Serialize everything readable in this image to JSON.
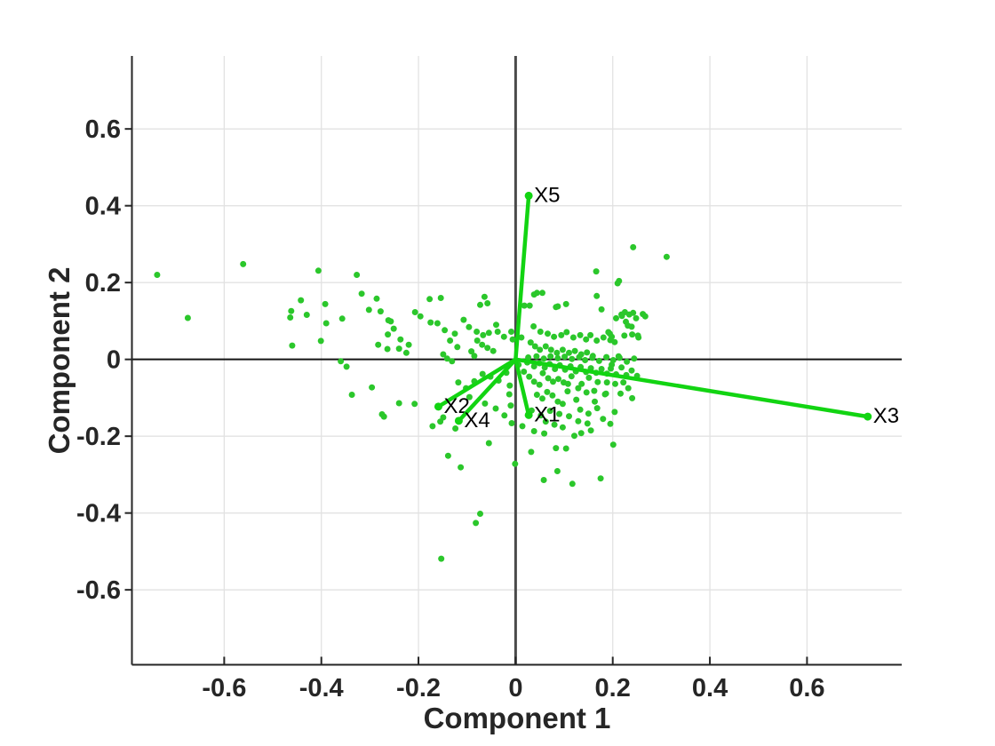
{
  "figure": {
    "background": "#ffffff"
  },
  "chart_data": {
    "type": "scatter",
    "subtype": "pca-biplot",
    "title": "",
    "xlabel": "Component 1",
    "ylabel": "Component 2",
    "xlim": [
      -0.79,
      0.795
    ],
    "ylim": [
      -0.795,
      0.79
    ],
    "xticks": [
      -0.6,
      -0.4,
      -0.2,
      0,
      0.2,
      0.4,
      0.6
    ],
    "xtick_labels": [
      "-0.6",
      "-0.4",
      "-0.2",
      "0",
      "0.2",
      "0.4",
      "0.6"
    ],
    "yticks": [
      -0.6,
      -0.4,
      -0.2,
      0,
      0.2,
      0.4,
      0.6
    ],
    "ytick_labels": [
      "-0.6",
      "-0.4",
      "-0.2",
      "0",
      "0.2",
      "0.4",
      "0.6"
    ],
    "grid": true,
    "zero_lines": true,
    "legend": "none",
    "colors": {
      "marker": "#2bc72b",
      "vector": "#12d412",
      "axis": "#262626",
      "grid": "#e2e2e2",
      "zero_horizontal": "#151515",
      "zero_vertical": "#4a4a4a",
      "vector_label": "#000000"
    },
    "vectors": [
      {
        "name": "X1",
        "x": 0.027,
        "y": -0.145
      },
      {
        "name": "X2",
        "x": -0.159,
        "y": -0.123
      },
      {
        "name": "X3",
        "x": 0.725,
        "y": -0.149
      },
      {
        "name": "X4",
        "x": -0.117,
        "y": -0.16
      },
      {
        "name": "X5",
        "x": 0.027,
        "y": 0.426
      }
    ],
    "points": [
      [
        -0.738,
        0.22
      ],
      [
        -0.675,
        0.108
      ],
      [
        -0.561,
        0.248
      ],
      [
        -0.464,
        0.109
      ],
      [
        -0.462,
        0.126
      ],
      [
        -0.46,
        0.036
      ],
      [
        -0.442,
        0.154
      ],
      [
        -0.43,
        0.116
      ],
      [
        -0.406,
        0.231
      ],
      [
        -0.401,
        0.048
      ],
      [
        -0.392,
        0.144
      ],
      [
        -0.39,
        0.094
      ],
      [
        -0.36,
        -0.005
      ],
      [
        -0.357,
        0.106
      ],
      [
        -0.348,
        -0.019
      ],
      [
        -0.337,
        -0.092
      ],
      [
        -0.327,
        0.22
      ],
      [
        -0.317,
        0.171
      ],
      [
        -0.302,
        0.129
      ],
      [
        -0.296,
        -0.073
      ],
      [
        -0.286,
        0.158
      ],
      [
        -0.283,
        0.038
      ],
      [
        -0.278,
        0.125
      ],
      [
        -0.275,
        -0.143
      ],
      [
        -0.264,
        0.027
      ],
      [
        -0.262,
        0.102
      ],
      [
        -0.257,
        0.099
      ],
      [
        -0.251,
        0.08
      ],
      [
        -0.263,
        0.065
      ],
      [
        -0.237,
        0.052
      ],
      [
        -0.24,
        0.028
      ],
      [
        -0.22,
        0.038
      ],
      [
        -0.225,
        0.017
      ],
      [
        -0.207,
        0.123
      ],
      [
        -0.196,
        0.112
      ],
      [
        -0.177,
        0.157
      ],
      [
        -0.154,
        0.16
      ],
      [
        -0.175,
        0.096
      ],
      [
        -0.161,
        0.094
      ],
      [
        -0.146,
        0.076
      ],
      [
        -0.125,
        0.067
      ],
      [
        -0.135,
        0.049
      ],
      [
        -0.12,
        0.032
      ],
      [
        -0.107,
        0.103
      ],
      [
        -0.096,
        0.084
      ],
      [
        -0.08,
        0.072
      ],
      [
        -0.067,
        0.063
      ],
      [
        -0.055,
        0.069
      ],
      [
        -0.064,
        0.163
      ],
      [
        -0.073,
        0.142
      ],
      [
        -0.058,
        0.146
      ],
      [
        -0.04,
        0.09
      ],
      [
        -0.037,
        0.072
      ],
      [
        -0.024,
        0.059
      ],
      [
        -0.009,
        0.072
      ],
      [
        -0.006,
        0.052
      ],
      [
        0.012,
        0.057
      ],
      [
        -0.079,
        0.049
      ],
      [
        -0.069,
        0.038
      ],
      [
        -0.058,
        0.03
      ],
      [
        -0.046,
        0.022
      ],
      [
        -0.091,
        0.021
      ],
      [
        -0.085,
        0.009
      ],
      [
        -0.149,
        0.013
      ],
      [
        -0.141,
        0.002
      ],
      [
        -0.131,
        -0.005
      ],
      [
        0.044,
        0.173
      ],
      [
        0.055,
        0.173
      ],
      [
        0.018,
        0.14
      ],
      [
        0.029,
        0.14
      ],
      [
        0.087,
        0.138
      ],
      [
        0.104,
        0.144
      ],
      [
        0.167,
        0.165
      ],
      [
        0.177,
        0.13
      ],
      [
        0.166,
        0.229
      ],
      [
        0.213,
        0.204
      ],
      [
        0.242,
        0.292
      ],
      [
        0.311,
        0.267
      ],
      [
        0.038,
        0.169
      ],
      [
        0.083,
        0.136
      ],
      [
        0.218,
        0.117
      ],
      [
        0.225,
        0.123
      ],
      [
        0.262,
        0.118
      ],
      [
        0.219,
        0.113
      ],
      [
        0.234,
        0.117
      ],
      [
        0.248,
        0.107
      ],
      [
        0.227,
        0.098
      ],
      [
        0.24,
        0.065
      ],
      [
        0.253,
        0.057
      ],
      [
        0.21,
        0.198
      ],
      [
        0.207,
        0.107
      ],
      [
        0.242,
        0.121
      ],
      [
        0.267,
        0.112
      ],
      [
        0.231,
        0.088
      ],
      [
        0.239,
        0.085
      ],
      [
        0.191,
        0.071
      ],
      [
        0.198,
        0.059
      ],
      [
        0.195,
        0.05
      ],
      [
        0.224,
        0.062
      ],
      [
        0.252,
        0.062
      ],
      [
        0.212,
        0.008
      ],
      [
        0.196,
        -0.024
      ],
      [
        0.037,
        0.086
      ],
      [
        0.051,
        0.072
      ],
      [
        0.066,
        0.067
      ],
      [
        0.079,
        0.059
      ],
      [
        0.094,
        0.063
      ],
      [
        0.105,
        0.071
      ],
      [
        0.119,
        0.057
      ],
      [
        0.133,
        0.063
      ],
      [
        0.145,
        0.052
      ],
      [
        0.154,
        0.063
      ],
      [
        0.167,
        0.049
      ],
      [
        0.181,
        0.057
      ],
      [
        0.194,
        0.067
      ],
      [
        0.204,
        0.045
      ],
      [
        0.031,
        0.044
      ],
      [
        0.04,
        0.034
      ],
      [
        0.05,
        0.025
      ],
      [
        0.062,
        0.034
      ],
      [
        0.073,
        0.025
      ],
      [
        0.085,
        0.017
      ],
      [
        0.097,
        0.025
      ],
      [
        0.11,
        0.017
      ],
      [
        0.122,
        0.022
      ],
      [
        0.135,
        0.013
      ],
      [
        0.147,
        0.018
      ],
      [
        0.159,
        0.009
      ],
      [
        0.024,
        -0.008
      ],
      [
        0.038,
        -0.018
      ],
      [
        0.049,
        -0.01
      ],
      [
        0.06,
        -0.021
      ],
      [
        0.07,
        -0.012
      ],
      [
        0.081,
        -0.025
      ],
      [
        0.091,
        -0.015
      ],
      [
        0.102,
        -0.027
      ],
      [
        0.113,
        -0.018
      ],
      [
        0.124,
        -0.031
      ],
      [
        0.134,
        -0.02
      ],
      [
        0.145,
        -0.033
      ],
      [
        0.155,
        -0.023
      ],
      [
        0.166,
        -0.035
      ],
      [
        0.177,
        -0.025
      ],
      [
        0.188,
        -0.037
      ],
      [
        0.198,
        -0.014
      ],
      [
        0.207,
        -0.039
      ],
      [
        0.218,
        -0.021
      ],
      [
        0.228,
        -0.041
      ],
      [
        0.239,
        -0.029
      ],
      [
        0.25,
        -0.043
      ],
      [
        0.067,
        -0.049
      ],
      [
        0.077,
        -0.058
      ],
      [
        0.088,
        -0.051
      ],
      [
        0.099,
        -0.06
      ],
      [
        0.038,
        -0.058
      ],
      [
        0.049,
        -0.066
      ],
      [
        0.097,
        -0.116
      ],
      [
        0.087,
        -0.11
      ],
      [
        0.107,
        -0.083
      ],
      [
        0.108,
        -0.064
      ],
      [
        0.125,
        -0.105
      ],
      [
        0.136,
        -0.064
      ],
      [
        0.146,
        -0.086
      ],
      [
        0.163,
        -0.11
      ],
      [
        0.184,
        -0.091
      ],
      [
        0.204,
        -0.137
      ],
      [
        0.216,
        -0.089
      ],
      [
        0.24,
        -0.101
      ],
      [
        0.186,
        -0.089
      ],
      [
        -0.24,
        -0.114
      ],
      [
        -0.208,
        -0.116
      ],
      [
        -0.271,
        -0.149
      ],
      [
        -0.149,
        -0.151
      ],
      [
        -0.171,
        -0.174
      ],
      [
        -0.155,
        -0.162
      ],
      [
        -0.124,
        -0.18
      ],
      [
        -0.055,
        -0.218
      ],
      [
        -0.012,
        -0.068
      ],
      [
        -0.013,
        -0.091
      ],
      [
        -0.01,
        -0.12
      ],
      [
        -0.008,
        -0.166
      ],
      [
        0.014,
        -0.174
      ],
      [
        0.038,
        -0.187
      ],
      [
        0.097,
        -0.177
      ],
      [
        0.121,
        -0.199
      ],
      [
        0.083,
        -0.231
      ],
      [
        0.201,
        -0.222
      ],
      [
        0.059,
        -0.193
      ],
      [
        -0.139,
        -0.251
      ],
      [
        -0.113,
        -0.281
      ],
      [
        -0.001,
        -0.272
      ],
      [
        0.032,
        -0.241
      ],
      [
        0.104,
        -0.232
      ],
      [
        0.086,
        -0.291
      ],
      [
        0.058,
        -0.314
      ],
      [
        0.117,
        -0.324
      ],
      [
        0.175,
        -0.31
      ],
      [
        -0.073,
        -0.402
      ],
      [
        -0.082,
        -0.426
      ],
      [
        -0.153,
        -0.519
      ],
      [
        0.026,
        0.005
      ],
      [
        0.043,
        0.008
      ],
      [
        0.058,
        0.002
      ],
      [
        0.072,
        0.008
      ],
      [
        0.087,
        0.003
      ],
      [
        0.101,
        0.007
      ],
      [
        0.116,
        0.001
      ],
      [
        0.131,
        0.006
      ],
      [
        0.143,
        -0.002
      ],
      [
        0.158,
        0.004
      ],
      [
        0.172,
        -0.004
      ],
      [
        0.187,
        0.006
      ],
      [
        0.201,
        -0.002
      ],
      [
        0.214,
        0.004
      ],
      [
        0.229,
        -0.006
      ],
      [
        0.244,
        0.002
      ],
      [
        0.056,
        -0.036
      ],
      [
        0.115,
        -0.044
      ],
      [
        0.151,
        -0.048
      ],
      [
        0.169,
        -0.059
      ],
      [
        0.129,
        -0.075
      ],
      [
        0.162,
        -0.082
      ],
      [
        0.188,
        -0.06
      ],
      [
        0.205,
        -0.064
      ],
      [
        0.222,
        -0.06
      ],
      [
        0.232,
        -0.075
      ],
      [
        0.065,
        -0.085
      ],
      [
        0.076,
        -0.094
      ],
      [
        0.055,
        -0.102
      ],
      [
        0.044,
        -0.092
      ],
      [
        0.028,
        -0.045
      ],
      [
        0.017,
        -0.032
      ],
      [
        0.006,
        -0.014
      ],
      [
        -0.019,
        -0.035
      ],
      [
        -0.035,
        -0.055
      ],
      [
        -0.052,
        -0.045
      ],
      [
        -0.068,
        -0.038
      ],
      [
        -0.085,
        -0.057
      ],
      [
        -0.102,
        -0.075
      ],
      [
        -0.118,
        -0.06
      ],
      [
        -0.095,
        -0.098
      ],
      [
        -0.063,
        -0.115
      ],
      [
        -0.041,
        -0.128
      ],
      [
        -0.023,
        -0.146
      ],
      [
        0.133,
        -0.131
      ],
      [
        0.15,
        -0.141
      ],
      [
        0.168,
        -0.127
      ],
      [
        0.11,
        -0.148
      ],
      [
        0.09,
        -0.142
      ],
      [
        0.071,
        -0.134
      ],
      [
        0.052,
        -0.146
      ],
      [
        0.033,
        -0.133
      ],
      [
        0.129,
        -0.161
      ],
      [
        0.148,
        -0.167
      ],
      [
        0.062,
        -0.162
      ],
      [
        0.08,
        -0.17
      ],
      [
        0.18,
        -0.155
      ],
      [
        0.195,
        -0.168
      ],
      [
        0.155,
        -0.185
      ],
      [
        0.135,
        -0.192
      ]
    ]
  }
}
